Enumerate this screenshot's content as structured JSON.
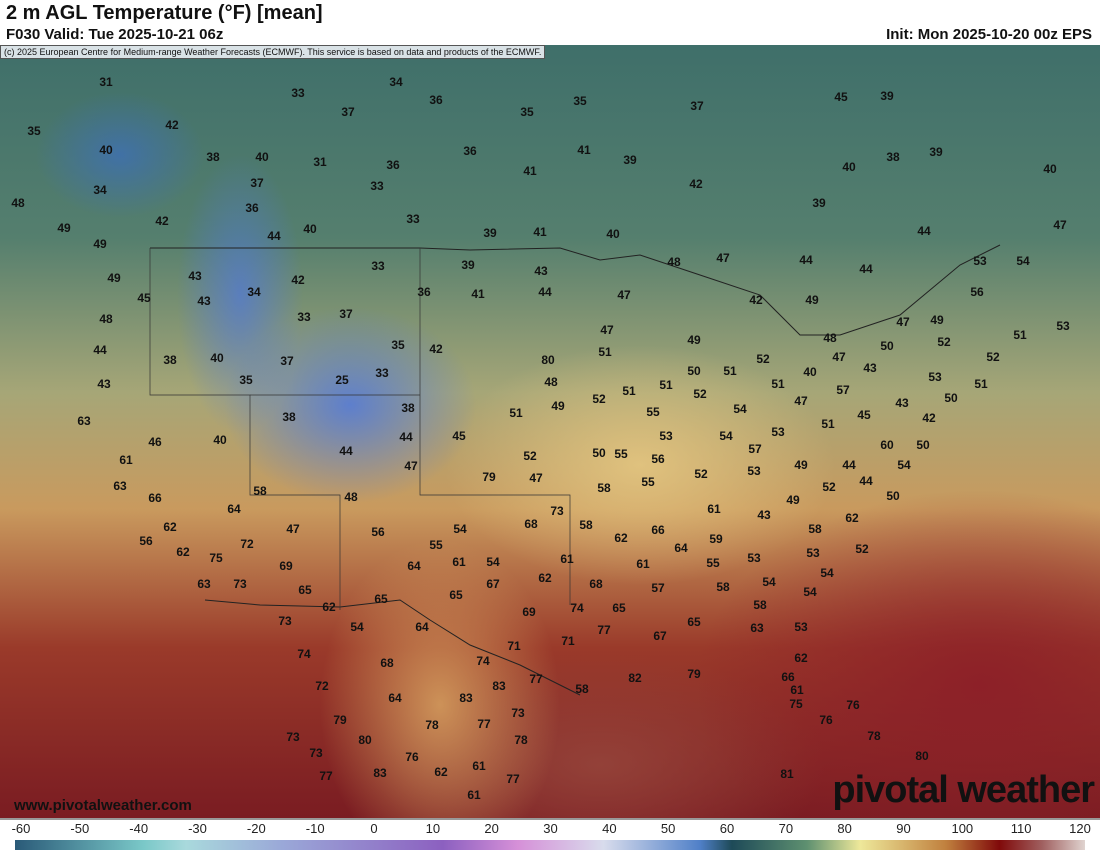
{
  "header": {
    "title": "2 m AGL Temperature (°F) [mean]",
    "valid": "F030 Valid: Tue 2025-10-21 06z",
    "init": "Init: Mon 2025-10-20 00z EPS"
  },
  "copyright": "(c) 2025 European Centre for Medium-range Weather Forecasts (ECMWF). This service is based on data and products of the ECMWF.",
  "watermark": {
    "site": "www.pivotalweather.com",
    "logo": "pivotal weather"
  },
  "colorbar": {
    "unit": "°F",
    "ticks": [
      "-60",
      "-50",
      "-40",
      "-30",
      "-20",
      "-10",
      "0",
      "10",
      "20",
      "30",
      "40",
      "50",
      "60",
      "70",
      "80",
      "90",
      "100",
      "110",
      "120"
    ]
  },
  "temperature_labels": [
    31,
    35,
    40,
    34,
    48,
    49,
    49,
    49,
    45,
    48,
    44,
    43,
    42,
    38,
    40,
    37,
    36,
    42,
    44,
    40,
    33,
    34,
    36,
    37,
    31,
    36,
    33,
    33,
    36,
    35,
    35,
    37,
    41,
    41,
    39,
    42,
    39,
    41,
    40,
    39,
    43,
    44,
    41,
    36,
    33,
    42,
    34,
    43,
    43,
    33,
    37,
    35,
    42,
    38,
    40,
    37,
    25,
    33,
    38,
    35,
    38,
    63,
    46,
    40,
    61,
    63,
    66,
    62,
    56,
    62,
    75,
    63,
    73,
    64,
    58,
    72,
    69,
    47,
    65,
    62,
    44,
    47,
    44,
    45,
    48,
    56,
    54,
    55,
    64,
    61,
    65,
    65,
    54,
    73,
    74,
    72,
    79,
    73,
    73,
    77,
    80,
    83,
    64,
    68,
    64,
    54,
    67,
    68,
    62,
    73,
    58,
    61,
    68,
    69,
    74,
    71,
    77,
    71,
    77,
    74,
    83,
    83,
    78,
    77,
    73,
    78,
    77,
    76,
    62,
    61,
    61,
    58,
    82,
    79,
    79,
    47,
    52,
    51,
    49,
    52,
    51,
    51,
    50,
    55,
    55,
    53,
    56,
    58,
    55,
    62,
    66,
    64,
    59,
    55,
    58,
    57,
    61,
    65,
    67,
    65,
    63,
    58,
    53,
    54,
    54,
    62,
    66,
    61,
    75,
    76,
    76,
    78,
    80,
    81,
    80,
    48,
    51,
    47,
    47,
    48,
    47,
    49,
    50,
    51,
    52,
    54,
    54,
    57,
    53,
    53,
    49,
    49,
    43,
    52,
    61,
    58,
    53,
    54,
    53,
    62,
    52,
    52,
    44,
    44,
    50,
    54,
    60,
    51,
    45,
    43,
    42,
    50,
    50,
    57,
    40,
    47,
    51,
    52,
    49,
    42,
    48,
    47,
    43,
    50,
    47,
    49,
    52,
    53,
    51,
    52,
    51,
    53,
    56,
    53,
    54,
    47,
    44,
    44,
    44,
    39,
    40,
    38,
    39,
    40,
    45,
    39,
    38
  ]
}
